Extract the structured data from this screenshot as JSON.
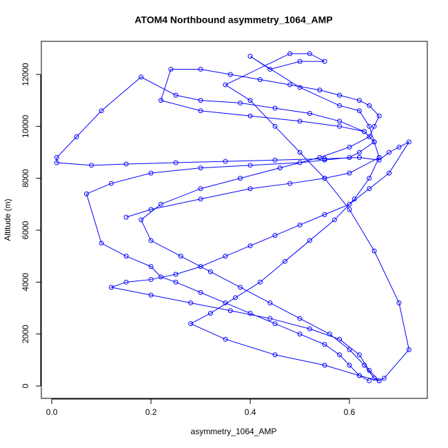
{
  "chart_data": {
    "type": "line",
    "markers": "circle",
    "title": "ATOM4 Northbound asymmetry_1064_AMP",
    "xlabel": "asymmetry_1064_AMP",
    "ylabel": "Altitude (m)",
    "color": "#0000ff",
    "xlim": [
      -0.021,
      0.757
    ],
    "ylim": [
      -478,
      13274
    ],
    "xticks": [
      {
        "value": 0,
        "label": "0.0"
      },
      0.2,
      0.4,
      0.6
    ],
    "yticks": [
      0,
      2000,
      4000,
      6000,
      8000,
      10000,
      12000
    ],
    "x": [
      0.64,
      0.62,
      0.6,
      0.58,
      0.55,
      0.5,
      0.45,
      0.4,
      0.35,
      0.3,
      0.25,
      0.22,
      0.2,
      0.15,
      0.1,
      0.07,
      0.12,
      0.2,
      0.3,
      0.4,
      0.5,
      0.55,
      0.6,
      0.62,
      0.65,
      0.63,
      0.58,
      0.52,
      0.45,
      0.38,
      0.3,
      0.25,
      0.18,
      0.1,
      0.05,
      0.01,
      0.01,
      0.08,
      0.15,
      0.25,
      0.35,
      0.45,
      0.55,
      0.62,
      0.66,
      0.68,
      0.7,
      0.72,
      0.68,
      0.64,
      0.6,
      0.55,
      0.5,
      0.45,
      0.4,
      0.35,
      0.3,
      0.25,
      0.2,
      0.15,
      0.12,
      0.2,
      0.28,
      0.36,
      0.44,
      0.52,
      0.58,
      0.62,
      0.64,
      0.66,
      0.65,
      0.63,
      0.6,
      0.56,
      0.5,
      0.44,
      0.38,
      0.32,
      0.26,
      0.2,
      0.18,
      0.22,
      0.3,
      0.38,
      0.46,
      0.54,
      0.6,
      0.64,
      0.65,
      0.66,
      0.64,
      0.62,
      0.58,
      0.54,
      0.48,
      0.42,
      0.36,
      0.3,
      0.24,
      0.22,
      0.3,
      0.4,
      0.5,
      0.58,
      0.63,
      0.65,
      0.66,
      0.64,
      0.61,
      0.57,
      0.52,
      0.47,
      0.42,
      0.37,
      0.32,
      0.28,
      0.35,
      0.45,
      0.55,
      0.62,
      0.66,
      0.67,
      0.72,
      0.7,
      0.65,
      0.6,
      0.55,
      0.5,
      0.45,
      0.4,
      0.35,
      0.48,
      0.52,
      0.55,
      0.5,
      0.44,
      0.4,
      0.5,
      0.58,
      0.62,
      0.64,
      0.65,
      0.66,
      0.6,
      0.55,
      0.48,
      0.4,
      0.3,
      0.2,
      0.15
    ],
    "values": [
      200,
      400,
      800,
      1200,
      1600,
      2000,
      2400,
      2800,
      3200,
      3600,
      4000,
      4200,
      4600,
      5000,
      5500,
      7400,
      7800,
      8200,
      8400,
      8500,
      8600,
      8700,
      8800,
      9000,
      9400,
      9800,
      10200,
      10500,
      10700,
      10900,
      11000,
      11200,
      11900,
      10600,
      9600,
      8800,
      8600,
      8500,
      8550,
      8600,
      8650,
      8700,
      8750,
      8800,
      8700,
      9000,
      9200,
      9400,
      8200,
      7600,
      7000,
      6600,
      6200,
      5800,
      5400,
      5000,
      4600,
      4300,
      4100,
      4000,
      3800,
      3500,
      3200,
      2900,
      2600,
      2200,
      1800,
      1200,
      600,
      200,
      300,
      800,
      1400,
      2000,
      2600,
      3200,
      3800,
      4400,
      5000,
      5600,
      6400,
      7000,
      7600,
      8000,
      8400,
      8800,
      9200,
      9600,
      10000,
      10400,
      10800,
      11000,
      11200,
      11400,
      11600,
      11800,
      12000,
      12200,
      12200,
      11000,
      10600,
      10400,
      10200,
      10000,
      9800,
      9400,
      8800,
      8000,
      7200,
      6400,
      5600,
      4800,
      4000,
      3400,
      2800,
      2400,
      1800,
      1200,
      800,
      400,
      200,
      300,
      1400,
      3200,
      5200,
      6800,
      8000,
      9000,
      10000,
      11000,
      11600,
      12800,
      12800,
      12500,
      12500,
      12200,
      12700,
      11500,
      10800,
      10600,
      10000,
      9400,
      8800,
      8200,
      8000,
      7800,
      7600,
      7200,
      6800,
      6500
    ]
  }
}
